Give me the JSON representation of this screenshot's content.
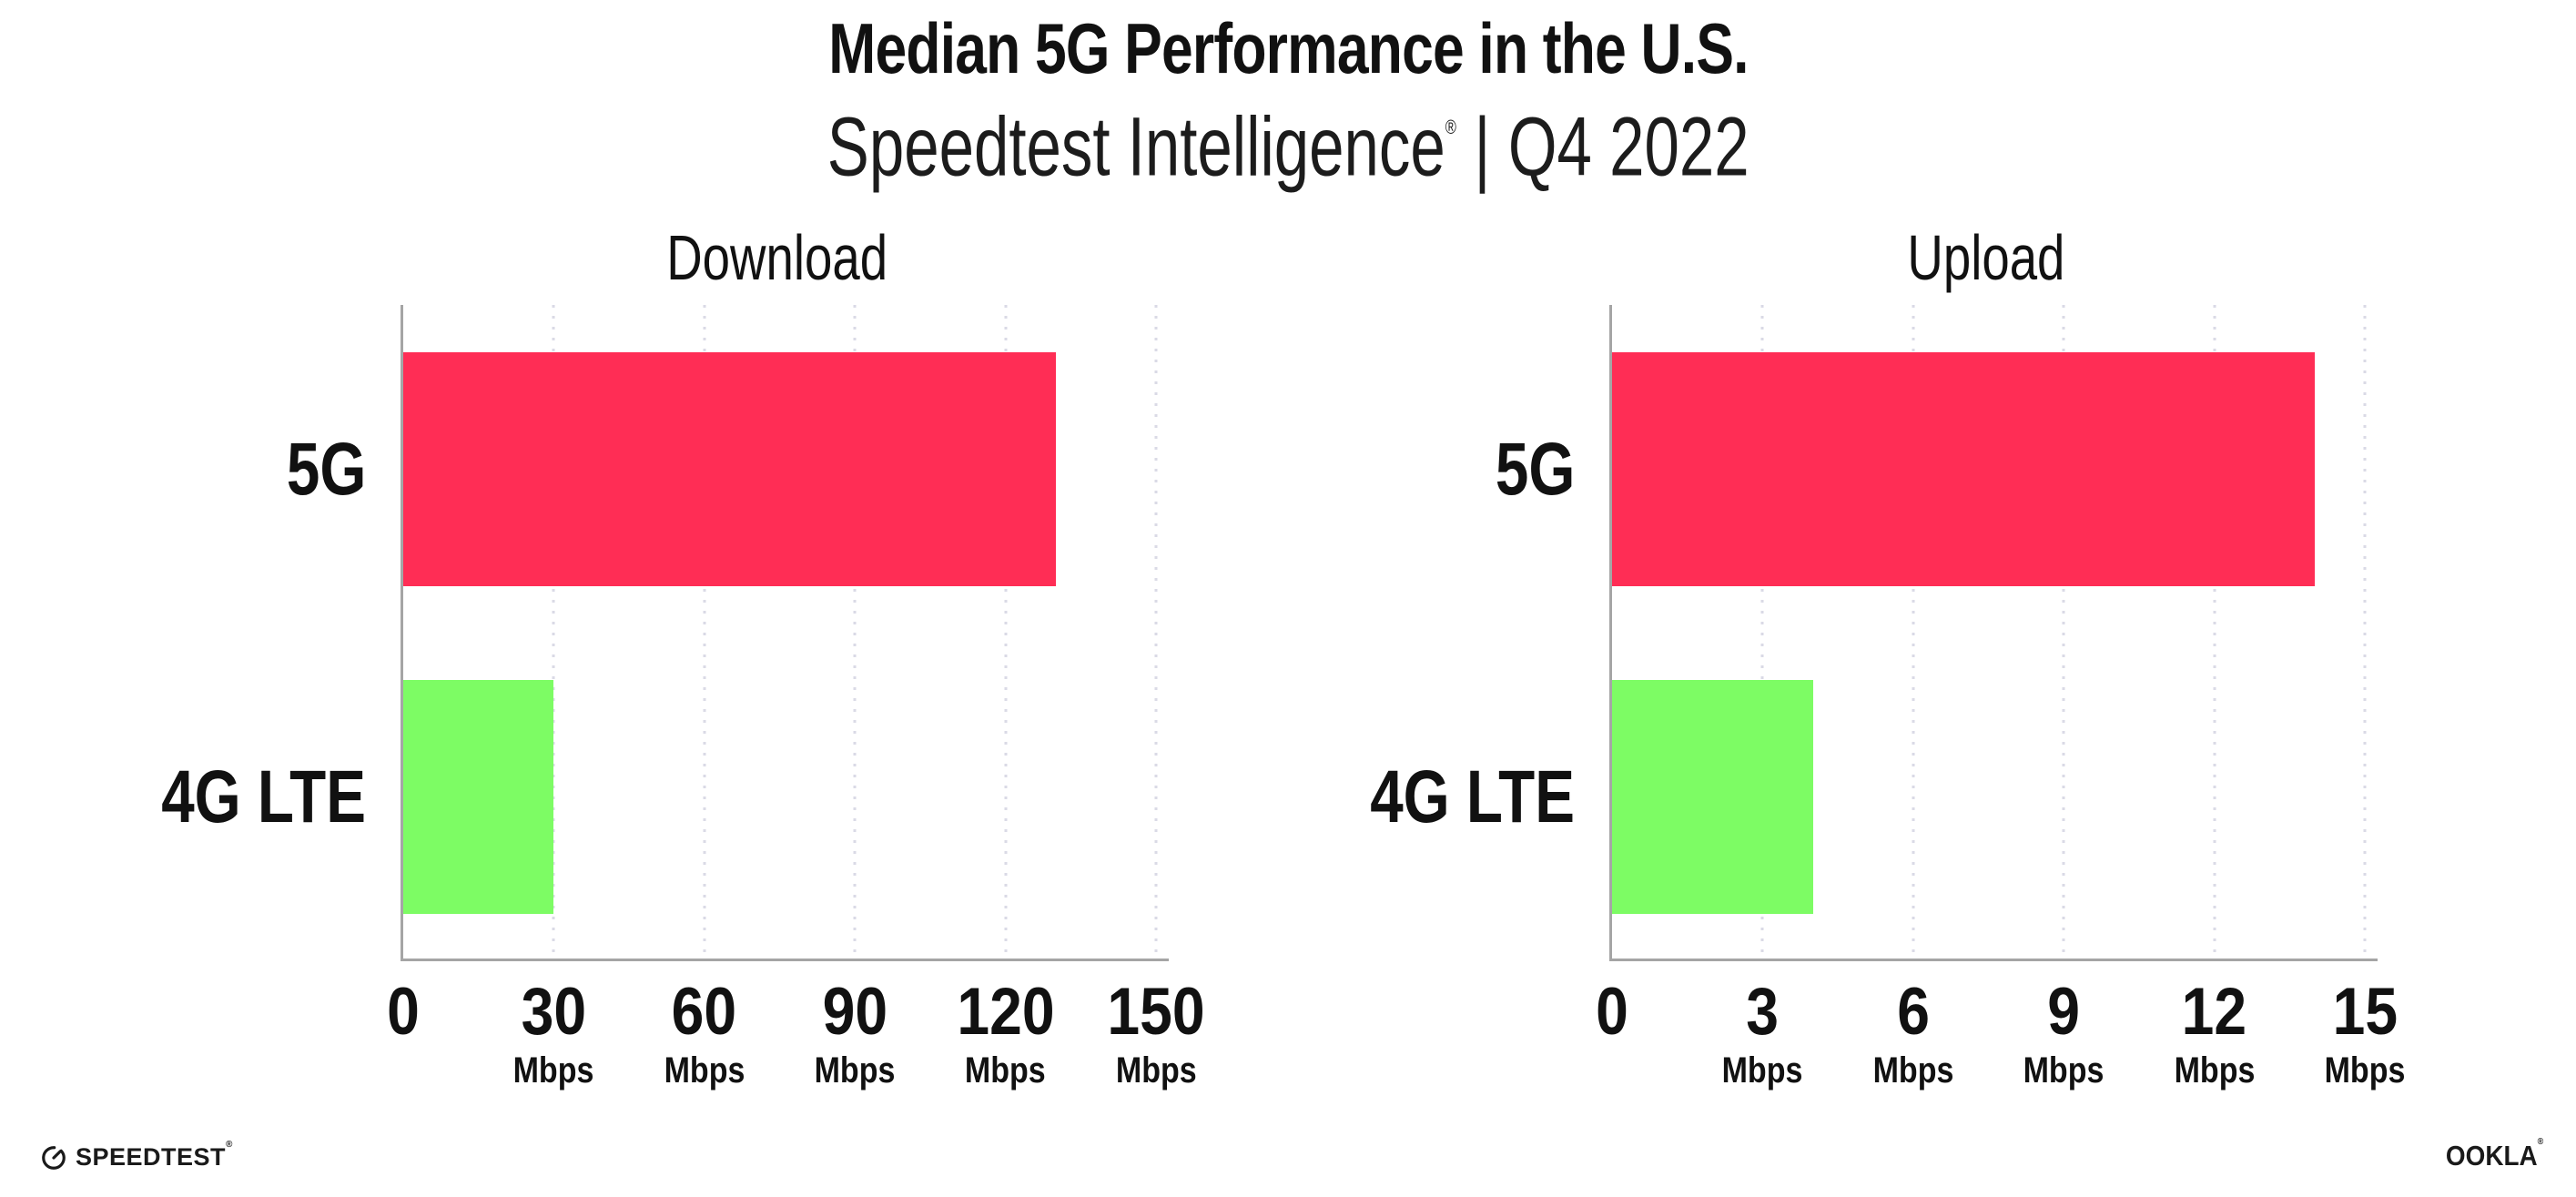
{
  "header": {
    "title": "Median 5G Performance in the U.S.",
    "subtitle_brand": "Speedtest Intelligence",
    "subtitle_registered": "®",
    "subtitle_separator": "|",
    "subtitle_period": "Q4 2022"
  },
  "chart_data": [
    {
      "type": "bar",
      "orientation": "horizontal",
      "title": "Download",
      "categories": [
        "5G",
        "4G LTE"
      ],
      "values": [
        130,
        30
      ],
      "unit": "Mbps",
      "xlabel": "",
      "ylabel": "",
      "xlim": [
        0,
        150
      ],
      "xticks": [
        0,
        30,
        60,
        90,
        120,
        150
      ],
      "grid": "vertical-dotted",
      "legend": "none",
      "bar_colors": [
        "#FF2D55",
        "#7DFC64"
      ]
    },
    {
      "type": "bar",
      "orientation": "horizontal",
      "title": "Upload",
      "categories": [
        "5G",
        "4G LTE"
      ],
      "values": [
        14,
        4
      ],
      "unit": "Mbps",
      "xlabel": "",
      "ylabel": "",
      "xlim": [
        0,
        15
      ],
      "xticks": [
        0,
        3,
        6,
        9,
        12,
        15
      ],
      "grid": "vertical-dotted",
      "legend": "none",
      "bar_colors": [
        "#FF2D55",
        "#7DFC64"
      ]
    }
  ],
  "colors": {
    "bar_5g": "#FF2D55",
    "bar_4g_lte": "#7DFC64",
    "axis": "#A5A5A5",
    "gridline_dots": "#DADAE6",
    "text": "#111111"
  },
  "footer": {
    "speedtest_label": "SPEEDTEST",
    "speedtest_mark": "®",
    "ookla_label": "OOKLA",
    "ookla_mark": "®"
  }
}
